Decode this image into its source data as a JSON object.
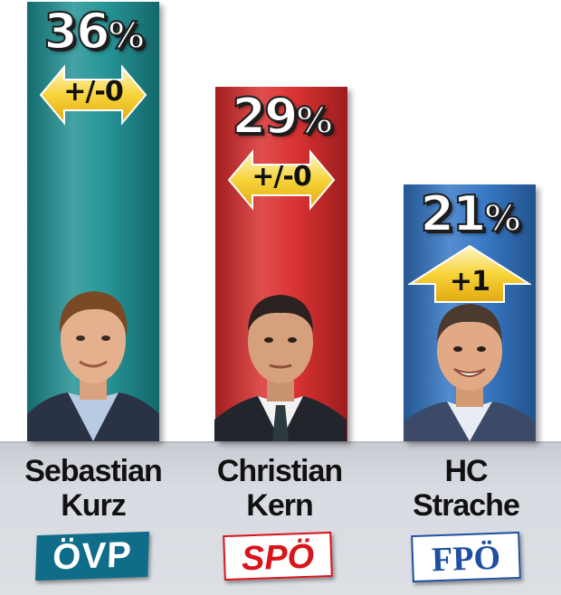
{
  "chart_data": {
    "type": "bar",
    "categories": [
      "Sebastian Kurz",
      "Christian Kern",
      "HC Strache"
    ],
    "values": [
      36,
      29,
      21
    ],
    "unit": "%",
    "changes": [
      "+/-0",
      "+/-0",
      "+1"
    ],
    "change_direction": [
      "both",
      "both",
      "up"
    ],
    "parties": [
      "ÖVP",
      "SPÖ",
      "FPÖ"
    ],
    "colors": [
      "#1b8f92",
      "#d92828",
      "#2f73c4"
    ],
    "ylim": [
      0,
      40
    ]
  },
  "candidates": [
    {
      "first": "Sebastian",
      "last": "Kurz",
      "value_label": "36",
      "percent_sign": "%",
      "change": "+/-0",
      "party": "ÖVP"
    },
    {
      "first": "Christian",
      "last": "Kern",
      "value_label": "29",
      "percent_sign": "%",
      "change": "+/-0",
      "party": "SPÖ"
    },
    {
      "first": "HC",
      "last": "Strache",
      "value_label": "21",
      "percent_sign": "%",
      "change": "+1",
      "party": "FPÖ"
    }
  ],
  "logo_colors": {
    "ovp_bg": "#0f6d89",
    "ovp_text": "#ffffff",
    "spo_bg": "#ffffff",
    "spo_text": "#d9141b",
    "fpo_bg": "#ffffff",
    "fpo_text": "#1e4fa0",
    "fpo_accent": "#d9141b"
  }
}
